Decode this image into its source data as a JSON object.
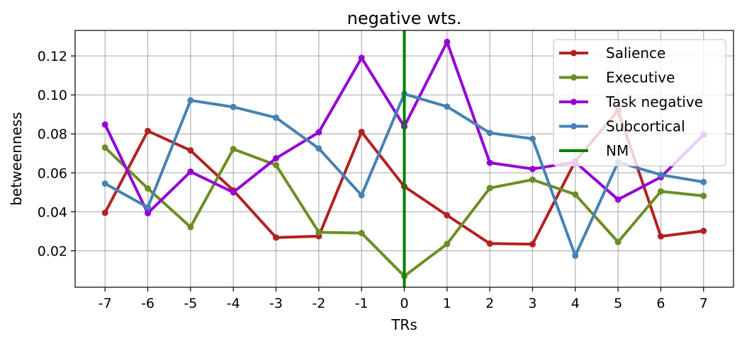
{
  "chart_data": {
    "type": "line",
    "title": "negative wts.",
    "xlabel": "TRs",
    "ylabel": "betweenness",
    "x": [
      -7,
      -6,
      -5,
      -4,
      -3,
      -2,
      -1,
      0,
      1,
      2,
      3,
      4,
      5,
      6,
      7
    ],
    "x_tick_labels": [
      "-7",
      "-6",
      "-5",
      "-4",
      "-3",
      "-2",
      "-1",
      "0",
      "1",
      "2",
      "3",
      "4",
      "5",
      "6",
      "7"
    ],
    "xlim": [
      -7.7,
      7.7
    ],
    "ylim": [
      0.0013,
      0.1331
    ],
    "y_ticks": [
      0.02,
      0.04,
      0.06,
      0.08,
      0.1,
      0.12
    ],
    "y_tick_labels": [
      "0.02",
      "0.04",
      "0.06",
      "0.08",
      "0.10",
      "0.12"
    ],
    "grid": true,
    "legend_position": "top-right",
    "series": [
      {
        "name": "Salience",
        "color": "#b22222",
        "values": [
          0.0395,
          0.0815,
          0.0715,
          0.051,
          0.0268,
          0.0275,
          0.081,
          0.053,
          0.0382,
          0.0237,
          0.0234,
          0.066,
          0.092,
          0.0274,
          0.0302
        ]
      },
      {
        "name": "Executive",
        "color": "#6b8e23",
        "values": [
          0.073,
          0.052,
          0.0322,
          0.0722,
          0.064,
          0.0295,
          0.0291,
          0.007,
          0.0235,
          0.0522,
          0.0565,
          0.0489,
          0.0245,
          0.0505,
          0.0482
        ]
      },
      {
        "name": "Task negative",
        "color": "#9400d3",
        "values": [
          0.0848,
          0.0393,
          0.0606,
          0.05,
          0.0675,
          0.0808,
          0.119,
          0.0838,
          0.1272,
          0.0652,
          0.062,
          0.0655,
          0.0463,
          0.0578,
          0.0795
        ]
      },
      {
        "name": "Subcortical",
        "color": "#4682b4",
        "values": [
          0.0545,
          0.0423,
          0.0972,
          0.0938,
          0.0883,
          0.0725,
          0.0485,
          0.1005,
          0.094,
          0.0805,
          0.0775,
          0.0175,
          0.0655,
          0.059,
          0.0553
        ]
      }
    ],
    "vertical_lines": [
      {
        "name": "NM",
        "x": 0,
        "color": "#008000"
      }
    ]
  }
}
